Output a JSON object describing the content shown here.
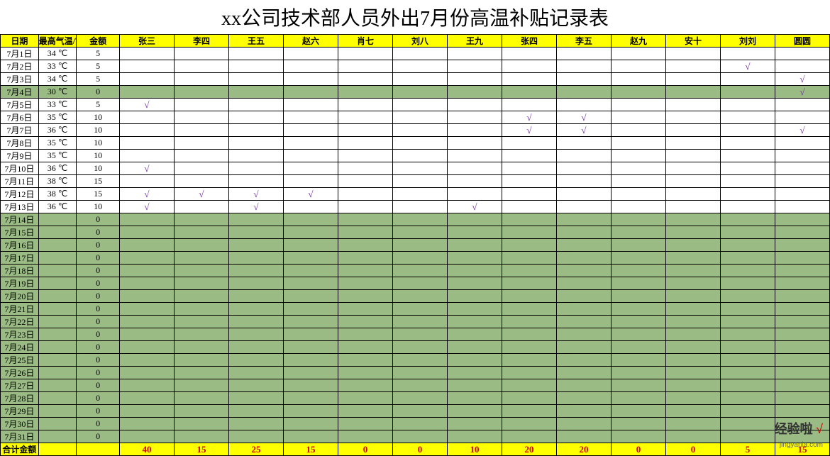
{
  "title": "xx公司技术部人员外出7月份高温补贴记录表",
  "columns": {
    "date": "日期",
    "temp": "最高气温/℃",
    "amount": "金额",
    "people": [
      "张三",
      "李四",
      "王五",
      "赵六",
      "肖七",
      "刘八",
      "王九",
      "张四",
      "李五",
      "赵九",
      "安十",
      "刘刘",
      "圆圆"
    ]
  },
  "tick": "√",
  "rows": [
    {
      "date": "7月1日",
      "temp": "34 ℃",
      "amount": "5",
      "green": false,
      "marks": [
        0,
        0,
        0,
        0,
        0,
        0,
        0,
        0,
        0,
        0,
        0,
        0,
        0
      ]
    },
    {
      "date": "7月2日",
      "temp": "33 ℃",
      "amount": "5",
      "green": false,
      "marks": [
        0,
        0,
        0,
        0,
        0,
        0,
        0,
        0,
        0,
        0,
        0,
        1,
        0
      ]
    },
    {
      "date": "7月3日",
      "temp": "34 ℃",
      "amount": "5",
      "green": false,
      "marks": [
        0,
        0,
        0,
        0,
        0,
        0,
        0,
        0,
        0,
        0,
        0,
        0,
        1
      ]
    },
    {
      "date": "7月4日",
      "temp": "30 ℃",
      "amount": "0",
      "green": true,
      "marks": [
        0,
        0,
        0,
        0,
        0,
        0,
        0,
        0,
        0,
        0,
        0,
        0,
        1
      ]
    },
    {
      "date": "7月5日",
      "temp": "33 ℃",
      "amount": "5",
      "green": false,
      "marks": [
        1,
        0,
        0,
        0,
        0,
        0,
        0,
        0,
        0,
        0,
        0,
        0,
        0
      ]
    },
    {
      "date": "7月6日",
      "temp": "35 ℃",
      "amount": "10",
      "green": false,
      "marks": [
        0,
        0,
        0,
        0,
        0,
        0,
        0,
        1,
        1,
        0,
        0,
        0,
        0
      ]
    },
    {
      "date": "7月7日",
      "temp": "36 ℃",
      "amount": "10",
      "green": false,
      "marks": [
        0,
        0,
        0,
        0,
        0,
        0,
        0,
        1,
        1,
        0,
        0,
        0,
        1
      ]
    },
    {
      "date": "7月8日",
      "temp": "35 ℃",
      "amount": "10",
      "green": false,
      "marks": [
        0,
        0,
        0,
        0,
        0,
        0,
        0,
        0,
        0,
        0,
        0,
        0,
        0
      ]
    },
    {
      "date": "7月9日",
      "temp": "35 ℃",
      "amount": "10",
      "green": false,
      "marks": [
        0,
        0,
        0,
        0,
        0,
        0,
        0,
        0,
        0,
        0,
        0,
        0,
        0
      ]
    },
    {
      "date": "7月10日",
      "temp": "36 ℃",
      "amount": "10",
      "green": false,
      "marks": [
        1,
        0,
        0,
        0,
        0,
        0,
        0,
        0,
        0,
        0,
        0,
        0,
        0
      ]
    },
    {
      "date": "7月11日",
      "temp": "38 ℃",
      "amount": "15",
      "green": false,
      "marks": [
        0,
        0,
        0,
        0,
        0,
        0,
        0,
        0,
        0,
        0,
        0,
        0,
        0
      ]
    },
    {
      "date": "7月12日",
      "temp": "38 ℃",
      "amount": "15",
      "green": false,
      "marks": [
        1,
        1,
        1,
        1,
        0,
        0,
        0,
        0,
        0,
        0,
        0,
        0,
        0
      ]
    },
    {
      "date": "7月13日",
      "temp": "36 ℃",
      "amount": "10",
      "green": false,
      "marks": [
        1,
        0,
        1,
        0,
        0,
        0,
        1,
        0,
        0,
        0,
        0,
        0,
        0
      ]
    },
    {
      "date": "7月14日",
      "temp": "",
      "amount": "0",
      "green": true,
      "marks": [
        0,
        0,
        0,
        0,
        0,
        0,
        0,
        0,
        0,
        0,
        0,
        0,
        0
      ]
    },
    {
      "date": "7月15日",
      "temp": "",
      "amount": "0",
      "green": true,
      "marks": [
        0,
        0,
        0,
        0,
        0,
        0,
        0,
        0,
        0,
        0,
        0,
        0,
        0
      ]
    },
    {
      "date": "7月16日",
      "temp": "",
      "amount": "0",
      "green": true,
      "marks": [
        0,
        0,
        0,
        0,
        0,
        0,
        0,
        0,
        0,
        0,
        0,
        0,
        0
      ]
    },
    {
      "date": "7月17日",
      "temp": "",
      "amount": "0",
      "green": true,
      "marks": [
        0,
        0,
        0,
        0,
        0,
        0,
        0,
        0,
        0,
        0,
        0,
        0,
        0
      ]
    },
    {
      "date": "7月18日",
      "temp": "",
      "amount": "0",
      "green": true,
      "marks": [
        0,
        0,
        0,
        0,
        0,
        0,
        0,
        0,
        0,
        0,
        0,
        0,
        0
      ]
    },
    {
      "date": "7月19日",
      "temp": "",
      "amount": "0",
      "green": true,
      "marks": [
        0,
        0,
        0,
        0,
        0,
        0,
        0,
        0,
        0,
        0,
        0,
        0,
        0
      ]
    },
    {
      "date": "7月20日",
      "temp": "",
      "amount": "0",
      "green": true,
      "marks": [
        0,
        0,
        0,
        0,
        0,
        0,
        0,
        0,
        0,
        0,
        0,
        0,
        0
      ]
    },
    {
      "date": "7月21日",
      "temp": "",
      "amount": "0",
      "green": true,
      "marks": [
        0,
        0,
        0,
        0,
        0,
        0,
        0,
        0,
        0,
        0,
        0,
        0,
        0
      ]
    },
    {
      "date": "7月22日",
      "temp": "",
      "amount": "0",
      "green": true,
      "marks": [
        0,
        0,
        0,
        0,
        0,
        0,
        0,
        0,
        0,
        0,
        0,
        0,
        0
      ]
    },
    {
      "date": "7月23日",
      "temp": "",
      "amount": "0",
      "green": true,
      "marks": [
        0,
        0,
        0,
        0,
        0,
        0,
        0,
        0,
        0,
        0,
        0,
        0,
        0
      ]
    },
    {
      "date": "7月24日",
      "temp": "",
      "amount": "0",
      "green": true,
      "marks": [
        0,
        0,
        0,
        0,
        0,
        0,
        0,
        0,
        0,
        0,
        0,
        0,
        0
      ]
    },
    {
      "date": "7月25日",
      "temp": "",
      "amount": "0",
      "green": true,
      "marks": [
        0,
        0,
        0,
        0,
        0,
        0,
        0,
        0,
        0,
        0,
        0,
        0,
        0
      ]
    },
    {
      "date": "7月26日",
      "temp": "",
      "amount": "0",
      "green": true,
      "marks": [
        0,
        0,
        0,
        0,
        0,
        0,
        0,
        0,
        0,
        0,
        0,
        0,
        0
      ]
    },
    {
      "date": "7月27日",
      "temp": "",
      "amount": "0",
      "green": true,
      "marks": [
        0,
        0,
        0,
        0,
        0,
        0,
        0,
        0,
        0,
        0,
        0,
        0,
        0
      ]
    },
    {
      "date": "7月28日",
      "temp": "",
      "amount": "0",
      "green": true,
      "marks": [
        0,
        0,
        0,
        0,
        0,
        0,
        0,
        0,
        0,
        0,
        0,
        0,
        0
      ]
    },
    {
      "date": "7月29日",
      "temp": "",
      "amount": "0",
      "green": true,
      "marks": [
        0,
        0,
        0,
        0,
        0,
        0,
        0,
        0,
        0,
        0,
        0,
        0,
        0
      ]
    },
    {
      "date": "7月30日",
      "temp": "",
      "amount": "0",
      "green": true,
      "marks": [
        0,
        0,
        0,
        0,
        0,
        0,
        0,
        0,
        0,
        0,
        0,
        0,
        0
      ]
    },
    {
      "date": "7月31日",
      "temp": "",
      "amount": "0",
      "green": true,
      "marks": [
        0,
        0,
        0,
        0,
        0,
        0,
        0,
        0,
        0,
        0,
        0,
        0,
        0
      ]
    }
  ],
  "footer": {
    "label": "合计金额",
    "totals": [
      "40",
      "15",
      "25",
      "15",
      "0",
      "0",
      "10",
      "20",
      "20",
      "0",
      "0",
      "5",
      "15"
    ]
  },
  "watermark": {
    "brand": "经验啦",
    "mark": "√",
    "url": "jingyanla.com"
  },
  "styles": {
    "header_bg": "#ffff00",
    "green_bg": "#9bbb85",
    "total_text": "#d00000",
    "tick_color": "#7030a0",
    "border_color": "#000000",
    "title_fontsize": 28,
    "cell_fontsize": 12
  }
}
